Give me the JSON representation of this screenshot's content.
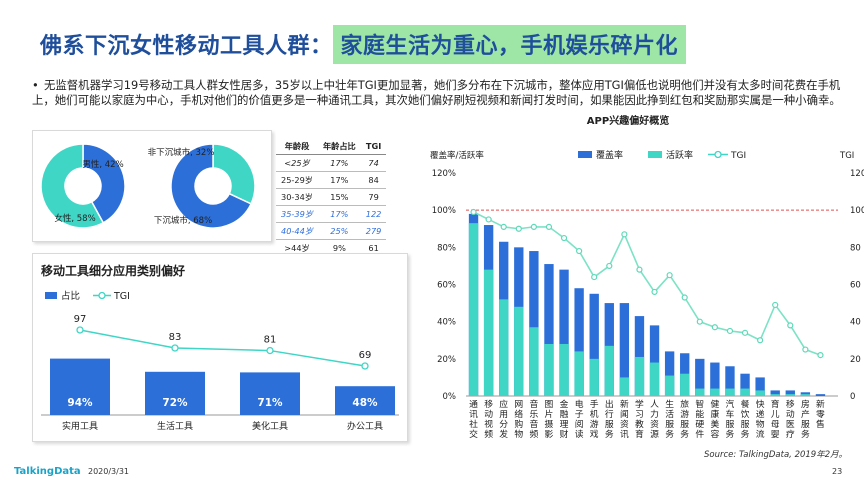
{
  "title": {
    "main": "佛系下沉女性移动工具人群：",
    "highlight": "家庭生活为重心，手机娱乐碎片化"
  },
  "description": "无监督机器学习19号移动工具人群女性居多，35岁以上中壮年TGI更加显著，她们多分布在下沉城市，整体应用TGI偏低也说明他们并没有太多时间花费在手机上，她们可能以家庭为中心，手机对他们的价值更多是一种通讯工具，其次她们偏好刷短视频和新闻打发时间，如果能因此挣到红包和奖励那实属是一种小确幸。",
  "colors": {
    "blue": "#2c6fd8",
    "teal": "#3fd6c6",
    "title_blue": "#1f4e9b",
    "highlight": "#9ee6a6",
    "ref_red": "#e05050"
  },
  "chart_data": [
    {
      "type": "pie",
      "variant": "donut",
      "slices": [
        {
          "label": "男性",
          "value": 42,
          "display": "男性, 42%"
        },
        {
          "label": "女性",
          "value": 58,
          "display": "女性, 58%"
        }
      ]
    },
    {
      "type": "pie",
      "variant": "donut",
      "slices": [
        {
          "label": "非下沉城市",
          "value": 32,
          "display": "非下沉城市, 32%"
        },
        {
          "label": "下沉城市",
          "value": 68,
          "display": "下沉城市, 68%"
        }
      ]
    },
    {
      "type": "table",
      "columns": [
        "年龄段",
        "年龄占比",
        "TGI"
      ],
      "rows": [
        [
          "<25岁",
          "17%",
          "74"
        ],
        [
          "25-29岁",
          "17%",
          "84"
        ],
        [
          "30-34岁",
          "15%",
          "79"
        ],
        [
          "35-39岁",
          "17%",
          "122"
        ],
        [
          "40-44岁",
          "25%",
          "279"
        ],
        [
          ">44岁",
          "9%",
          "61"
        ]
      ],
      "highlight_rows": [
        3,
        4
      ]
    },
    {
      "type": "bar",
      "title": "移动工具细分应用类别偏好",
      "legend": [
        "占比",
        "TGI"
      ],
      "categories": [
        "实用工具",
        "生活工具",
        "美化工具",
        "办公工具"
      ],
      "share": [
        94,
        72,
        71,
        48
      ],
      "share_labels": [
        "94%",
        "72%",
        "71%",
        "48%"
      ],
      "tgi": [
        97,
        83,
        81,
        69
      ]
    },
    {
      "type": "bar",
      "title": "APP兴趣偏好概览",
      "legend": [
        "覆盖率",
        "活跃率",
        "TGI"
      ],
      "y_left_label": "覆盖率/活跃率",
      "y_right_label": "TGI",
      "y_left_ticks": [
        "0%",
        "20%",
        "40%",
        "60%",
        "80%",
        "100%",
        "120%"
      ],
      "y_right_ticks": [
        "0",
        "20",
        "40",
        "60",
        "80",
        "100",
        "120"
      ],
      "ylim": [
        0,
        120
      ],
      "reference_line": 100,
      "categories": [
        "通讯社交",
        "移动视频",
        "应用分发",
        "网络购物",
        "音乐音频",
        "图片摄影",
        "金融理财",
        "电子阅读",
        "手机游戏",
        "出行服务",
        "新闻资讯",
        "学习教育",
        "人力资源",
        "生活服务",
        "旅游服务",
        "智能硬件",
        "健康美容",
        "汽车服务",
        "餐饮服务",
        "快递物流",
        "育儿母婴",
        "移动医疗",
        "房产服务",
        "新零售"
      ],
      "coverage": [
        98,
        92,
        83,
        80,
        78,
        71,
        68,
        58,
        55,
        50,
        50,
        43,
        38,
        24,
        23,
        20,
        18,
        16,
        12,
        10,
        3,
        3,
        2,
        1
      ],
      "active": [
        93,
        68,
        52,
        48,
        37,
        28,
        28,
        24,
        20,
        27,
        10,
        21,
        18,
        11,
        12,
        4,
        4,
        4,
        4,
        3,
        1,
        1,
        1,
        0
      ],
      "tgi": [
        99,
        95,
        91,
        90,
        91,
        91,
        85,
        78,
        64,
        70,
        87,
        68,
        56,
        65,
        53,
        40,
        37,
        35,
        34,
        30,
        49,
        38,
        25,
        22
      ]
    }
  ],
  "source": "Source: TalkingData, 2019年2月。",
  "footer": {
    "logo": "TalkingData",
    "date": "2020/3/31",
    "page": "23"
  }
}
